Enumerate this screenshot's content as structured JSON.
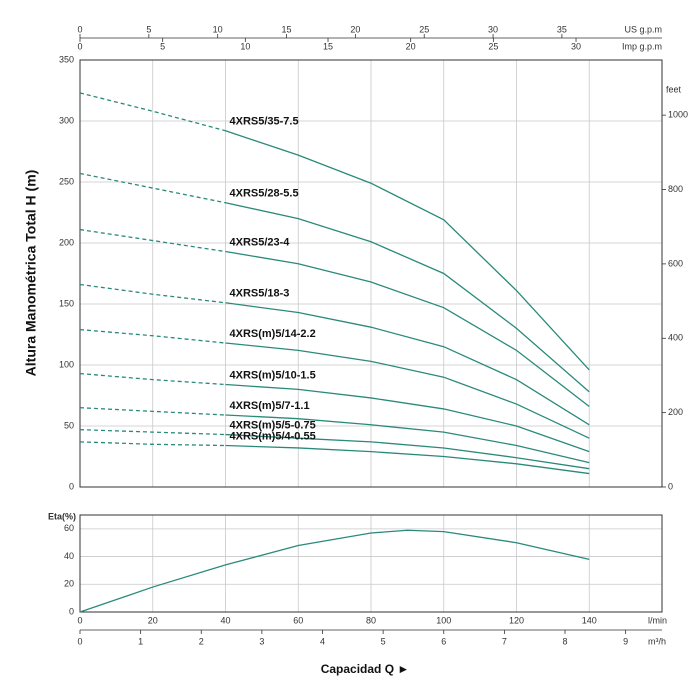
{
  "chart_data": [
    {
      "type": "line",
      "ylabel": "Altura Manométrica Total H (m)",
      "ylim": [
        0,
        350
      ],
      "yticks": [
        0,
        50,
        100,
        150,
        200,
        250,
        300,
        350
      ],
      "y2label": "feet",
      "y2lim": [
        0,
        1148.3
      ],
      "y2ticks": [
        0,
        200,
        400,
        600,
        800,
        1000
      ],
      "xlim": [
        0,
        160
      ],
      "top_axes": [
        {
          "label": "US g.p.m",
          "lim": [
            0,
            42.27
          ],
          "ticks": [
            0,
            5,
            10,
            15,
            20,
            25,
            30,
            35
          ]
        },
        {
          "label": "Imp g.p.m",
          "lim": [
            0,
            35.2
          ],
          "ticks": [
            0,
            5,
            10,
            15,
            20,
            25,
            30
          ]
        }
      ],
      "grid": true,
      "dashed_until": 40,
      "x": [
        0,
        20,
        40,
        60,
        80,
        100,
        120,
        140
      ],
      "series": [
        {
          "name": "4XRS5/35-7.5",
          "color": "#2a8a7a",
          "values": [
            323,
            308,
            292,
            272,
            249,
            219,
            161,
            96
          ]
        },
        {
          "name": "4XRS5/28-5.5",
          "color": "#2a8a7a",
          "values": [
            257,
            245,
            233,
            220,
            201,
            175,
            130,
            78
          ]
        },
        {
          "name": "4XRS5/23-4",
          "color": "#2a8a7a",
          "values": [
            211,
            202,
            193,
            183,
            168,
            147,
            112,
            66
          ]
        },
        {
          "name": "4XRS5/18-3",
          "color": "#2a8a7a",
          "values": [
            166,
            158,
            151,
            143,
            131,
            115,
            88,
            51
          ]
        },
        {
          "name": "4XRS(m)5/14-2.2",
          "color": "#2a8a7a",
          "values": [
            129,
            124,
            118,
            112,
            103,
            90,
            68,
            40
          ]
        },
        {
          "name": "4XRS(m)5/10-1.5",
          "color": "#2a8a7a",
          "values": [
            93,
            88,
            84,
            80,
            73,
            64,
            50,
            29
          ]
        },
        {
          "name": "4XRS(m)5/7-1.1",
          "color": "#2a8a7a",
          "values": [
            65,
            62,
            59,
            56,
            51,
            45,
            34,
            20
          ]
        },
        {
          "name": "4XRS(m)5/5-0.75",
          "color": "#2a8a7a",
          "values": [
            47,
            45,
            43,
            40,
            37,
            32,
            24,
            15
          ]
        },
        {
          "name": "4XRS(m)5/4-0.55",
          "color": "#2a8a7a",
          "values": [
            37,
            35,
            34,
            32,
            29,
            25,
            19,
            11
          ]
        }
      ]
    },
    {
      "type": "line",
      "ylabel": "Eta(%)",
      "ylim": [
        0,
        70
      ],
      "yticks": [
        0,
        20,
        40,
        60
      ],
      "xlim": [
        0,
        160
      ],
      "xticks": [
        0,
        20,
        40,
        60,
        80,
        100,
        120,
        140
      ],
      "xunit": "l/min",
      "x2": {
        "label": "m³/h",
        "lim": [
          0,
          9.6
        ],
        "ticks": [
          0,
          1,
          2,
          3,
          4,
          5,
          6,
          7,
          8,
          9
        ]
      },
      "xlabel": "Capacidad Q ►",
      "grid": true,
      "x": [
        0,
        20,
        40,
        60,
        80,
        90,
        100,
        120,
        140
      ],
      "series": [
        {
          "name": "Eta",
          "color": "#2a8a7a",
          "values": [
            0,
            18,
            34,
            48,
            57,
            59,
            58,
            50,
            38
          ]
        }
      ]
    }
  ]
}
